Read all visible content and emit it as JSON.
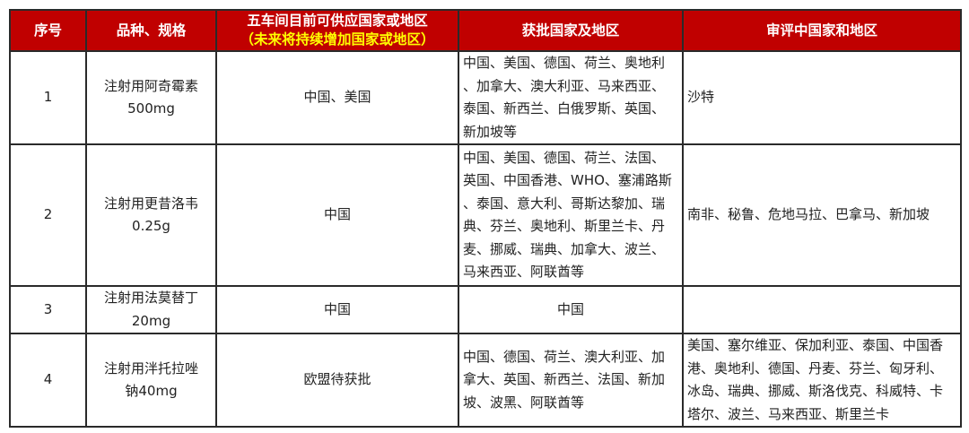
{
  "colors": {
    "header_bg": "#c00000",
    "header_text": "#ffffff",
    "header_sub": "#ffff00"
  },
  "headers": [
    "序号",
    "品种、规格",
    "五车间目前可供应国家或地区",
    "获批国家及地区",
    "审评中国家和地区"
  ],
  "header_sub": "（未来将持续增加国家或地区）",
  "rows": [
    {
      "no": "1",
      "product": [
        "注射用阿奇霉素",
        "500mg"
      ],
      "supply": "中国、美国",
      "approved": [
        "中国、美国、德国、荷兰、奥地利",
        "、加拿大、澳大利亚、马来西亚、",
        "泰国、新西兰、白俄罗斯、英国、",
        "新加坡等"
      ],
      "review": [
        "沙特"
      ]
    },
    {
      "no": "2",
      "product": [
        "注射用更昔洛韦",
        "0.25g"
      ],
      "supply": "中国",
      "approved": [
        "中国、美国、德国、荷兰、法国、",
        "英国、中国香港、WHO、塞浦路斯",
        "、泰国、意大利、哥斯达黎加、瑞",
        "典、芬兰、奥地利、斯里兰卡、丹",
        "麦、挪威、瑞典、加拿大、波兰、",
        "马来西亚、阿联酋等"
      ],
      "review": [
        "南非、秘鲁、危地马拉、巴拿马、新加坡"
      ]
    },
    {
      "no": "3",
      "product": [
        "注射用法莫替丁",
        "20mg"
      ],
      "supply": "中国",
      "approved": [
        "中国"
      ],
      "review": []
    },
    {
      "no": "4",
      "product": [
        "注射用泮托拉唑",
        "钠40mg"
      ],
      "supply": "欧盟待获批",
      "approved": [
        "中国、德国、荷兰、澳大利亚、加",
        "拿大、英国、新西兰、法国、新加",
        "坡、波黑、阿联酋等"
      ],
      "review": [
        "美国、塞尔维亚、保加利亚、泰国、中国香",
        "港、奥地利、德国、丹麦、芬兰、匈牙利、",
        "冰岛、瑞典、挪威、斯洛伐克、科威特、卡",
        "塔尔、波兰、马来西亚、斯里兰卡"
      ]
    }
  ]
}
